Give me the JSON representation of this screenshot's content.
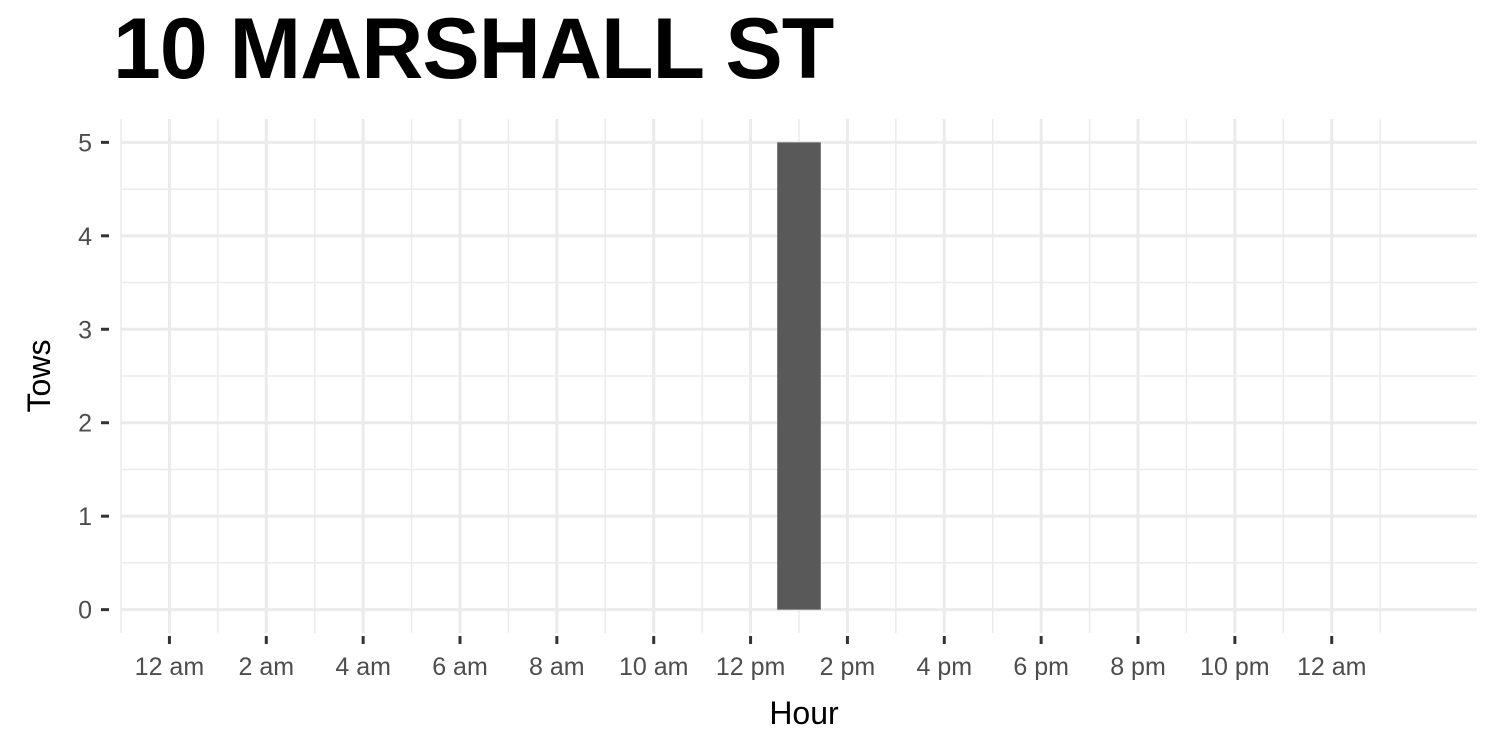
{
  "chart_data": {
    "type": "bar",
    "title": "10 MARSHALL ST",
    "xlabel": "Hour",
    "ylabel": "Tows",
    "x_tick_labels": [
      "12 am",
      "2 am",
      "4 am",
      "6 am",
      "8 am",
      "10 am",
      "12 pm",
      "2 pm",
      "4 pm",
      "6 pm",
      "8 pm",
      "10 pm",
      "12 am"
    ],
    "x_tick_hours": [
      0,
      2,
      4,
      6,
      8,
      10,
      12,
      14,
      16,
      18,
      20,
      22,
      24
    ],
    "xlim": [
      -1,
      27
    ],
    "y_ticks": [
      0,
      1,
      2,
      3,
      4,
      5
    ],
    "ylim": [
      -0.25,
      5.25
    ],
    "bars": [
      {
        "hour": 13,
        "value": 5
      }
    ],
    "bar_color": "#595959",
    "grid": true,
    "grid_color": "#ebebeb",
    "background": "#ffffff"
  }
}
